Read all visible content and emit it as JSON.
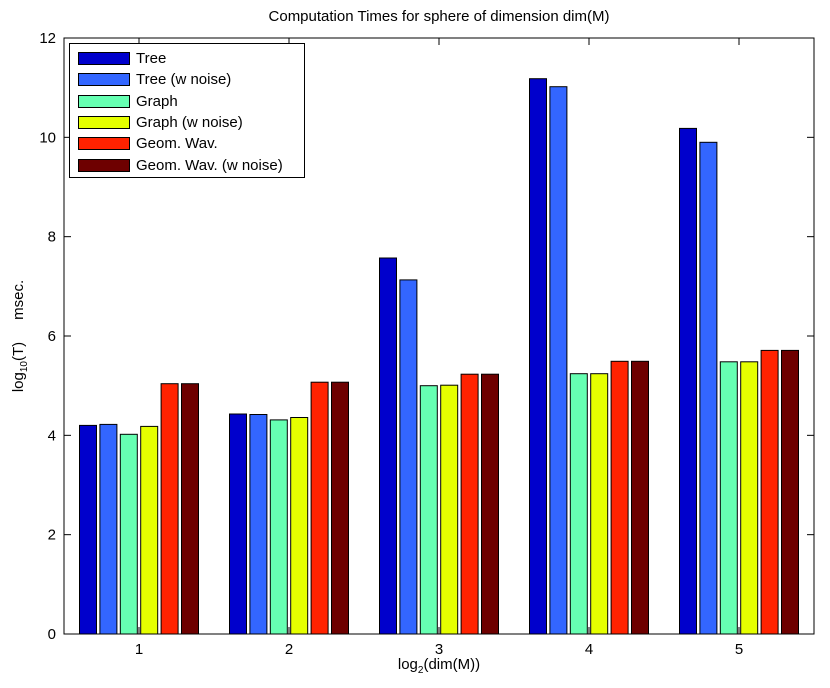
{
  "chart_data": {
    "type": "bar",
    "title": "Computation Times for sphere of dimension dim(M)",
    "xlabel_base": "log",
    "xlabel_sub": "2",
    "xlabel_rest": "(dim(M))",
    "ylabel_base": "log",
    "ylabel_sub": "10",
    "ylabel_rest": "(T)",
    "ylabel_unit": "msec.",
    "categories": [
      "1",
      "2",
      "3",
      "4",
      "5"
    ],
    "ylim": [
      0,
      12
    ],
    "yticks": [
      "0",
      "2",
      "4",
      "6",
      "8",
      "10",
      "12"
    ],
    "legend_position": "top-left",
    "series": [
      {
        "name": "Tree",
        "color": "#0000cc",
        "values": [
          4.2,
          4.43,
          7.57,
          11.18,
          10.18
        ]
      },
      {
        "name": "Tree (w noise)",
        "color": "#3366ff",
        "values": [
          4.22,
          4.42,
          7.13,
          11.02,
          9.9
        ]
      },
      {
        "name": "Graph",
        "color": "#66ffb2",
        "values": [
          4.02,
          4.31,
          5.0,
          5.24,
          5.48
        ]
      },
      {
        "name": "Graph (w noise)",
        "color": "#e5ff00",
        "values": [
          4.18,
          4.36,
          5.01,
          5.24,
          5.48
        ]
      },
      {
        "name": "Geom. Wav.",
        "color": "#ff2200",
        "values": [
          5.04,
          5.07,
          5.23,
          5.49,
          5.71
        ]
      },
      {
        "name": "Geom. Wav. (w noise)",
        "color": "#6e0000",
        "values": [
          5.04,
          5.07,
          5.23,
          5.49,
          5.71
        ]
      }
    ]
  }
}
